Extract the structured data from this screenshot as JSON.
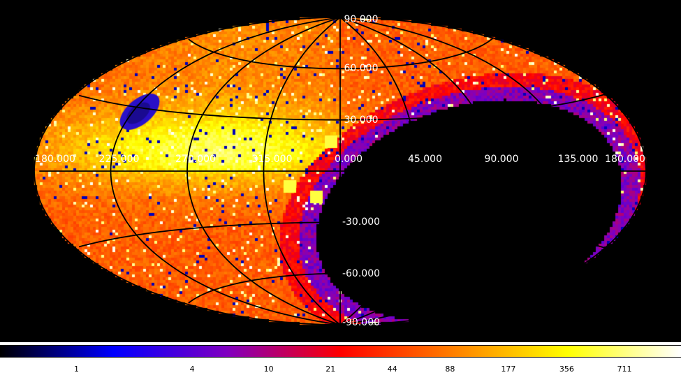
{
  "map": {
    "projection": "aitoff",
    "longitude_labels": [
      "180.000",
      "135.000",
      "90.000",
      "45.000",
      "0.000",
      "315.000",
      "270.000",
      "225.000",
      "180.000"
    ],
    "latitude_labels": [
      "90.000",
      "60.000",
      "30.000",
      "-30.000",
      "-60.000",
      "-90.000"
    ],
    "background_color": "#000000",
    "grid_color": "#000000",
    "label_color": "#ffffff"
  },
  "colorbar": {
    "scale": "log",
    "ticks": [
      "1",
      "4",
      "10",
      "21",
      "44",
      "88",
      "177",
      "356",
      "711"
    ],
    "colors": [
      "#000000",
      "#0000ff",
      "#8000c0",
      "#ff0000",
      "#ff8000",
      "#ffff00",
      "#ffffff"
    ]
  }
}
